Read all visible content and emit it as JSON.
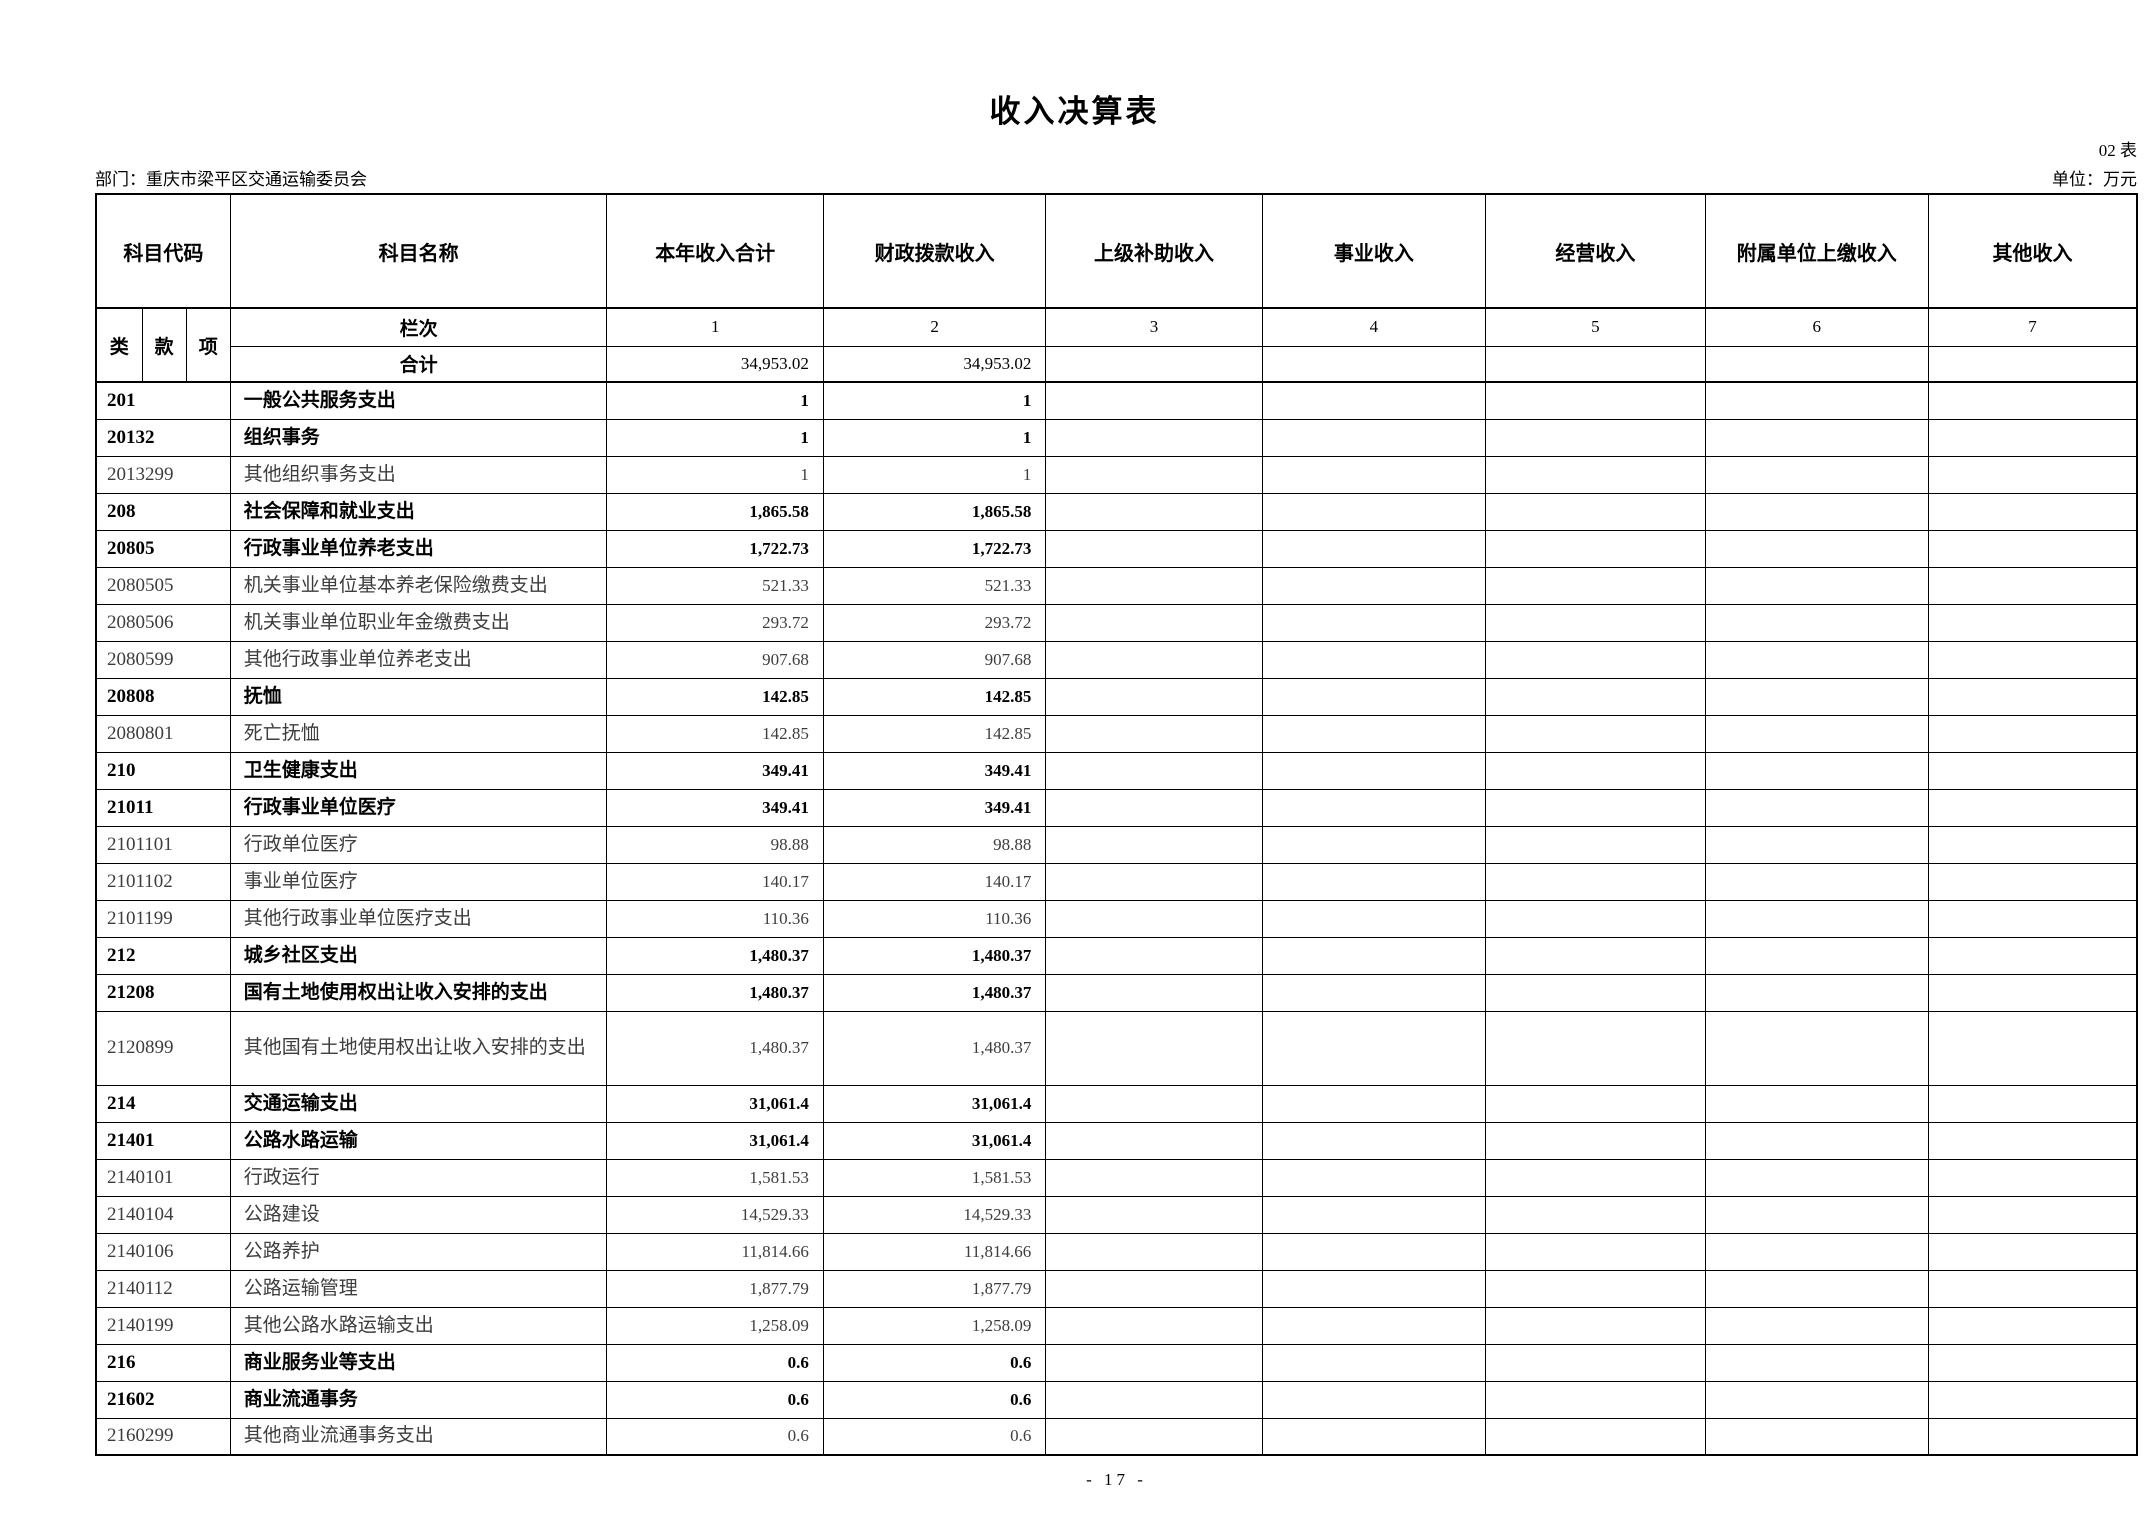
{
  "page": {
    "title": "收入决算表",
    "table_no": "02 表",
    "department": "部门：重庆市梁平区交通运输委员会",
    "unit": "单位：万元",
    "page_number": "- 17 -"
  },
  "table": {
    "headers": {
      "code": "科目代码",
      "name": "科目名称",
      "cols": [
        "本年收入合计",
        "财政拨款收入",
        "上级补助收入",
        "事业收入",
        "经营收入",
        "附属单位上缴收入",
        "其他收入"
      ],
      "code_subs": [
        "类",
        "款",
        "项"
      ],
      "lanci_label": "栏次",
      "col_numbers": [
        "1",
        "2",
        "3",
        "4",
        "5",
        "6",
        "7"
      ],
      "total_label": "合计"
    },
    "total_row": [
      "34,953.02",
      "34,953.02",
      "",
      "",
      "",
      "",
      ""
    ],
    "rows": [
      {
        "code": "201",
        "name": "一般公共服务支出",
        "bold": true,
        "tall": false,
        "values": [
          "1",
          "1",
          "",
          "",
          "",
          "",
          ""
        ]
      },
      {
        "code": "20132",
        "name": "组织事务",
        "bold": true,
        "tall": false,
        "values": [
          "1",
          "1",
          "",
          "",
          "",
          "",
          ""
        ]
      },
      {
        "code": "2013299",
        "name": "其他组织事务支出",
        "bold": false,
        "tall": false,
        "values": [
          "1",
          "1",
          "",
          "",
          "",
          "",
          ""
        ]
      },
      {
        "code": "208",
        "name": "社会保障和就业支出",
        "bold": true,
        "tall": false,
        "values": [
          "1,865.58",
          "1,865.58",
          "",
          "",
          "",
          "",
          ""
        ]
      },
      {
        "code": "20805",
        "name": "行政事业单位养老支出",
        "bold": true,
        "tall": false,
        "values": [
          "1,722.73",
          "1,722.73",
          "",
          "",
          "",
          "",
          ""
        ]
      },
      {
        "code": "2080505",
        "name": "机关事业单位基本养老保险缴费支出",
        "bold": false,
        "tall": false,
        "values": [
          "521.33",
          "521.33",
          "",
          "",
          "",
          "",
          ""
        ]
      },
      {
        "code": "2080506",
        "name": "机关事业单位职业年金缴费支出",
        "bold": false,
        "tall": false,
        "values": [
          "293.72",
          "293.72",
          "",
          "",
          "",
          "",
          ""
        ]
      },
      {
        "code": "2080599",
        "name": "其他行政事业单位养老支出",
        "bold": false,
        "tall": false,
        "values": [
          "907.68",
          "907.68",
          "",
          "",
          "",
          "",
          ""
        ]
      },
      {
        "code": "20808",
        "name": "抚恤",
        "bold": true,
        "tall": false,
        "values": [
          "142.85",
          "142.85",
          "",
          "",
          "",
          "",
          ""
        ]
      },
      {
        "code": "2080801",
        "name": "死亡抚恤",
        "bold": false,
        "tall": false,
        "values": [
          "142.85",
          "142.85",
          "",
          "",
          "",
          "",
          ""
        ]
      },
      {
        "code": "210",
        "name": "卫生健康支出",
        "bold": true,
        "tall": false,
        "values": [
          "349.41",
          "349.41",
          "",
          "",
          "",
          "",
          ""
        ]
      },
      {
        "code": "21011",
        "name": "行政事业单位医疗",
        "bold": true,
        "tall": false,
        "values": [
          "349.41",
          "349.41",
          "",
          "",
          "",
          "",
          ""
        ]
      },
      {
        "code": "2101101",
        "name": "行政单位医疗",
        "bold": false,
        "tall": false,
        "values": [
          "98.88",
          "98.88",
          "",
          "",
          "",
          "",
          ""
        ]
      },
      {
        "code": "2101102",
        "name": "事业单位医疗",
        "bold": false,
        "tall": false,
        "values": [
          "140.17",
          "140.17",
          "",
          "",
          "",
          "",
          ""
        ]
      },
      {
        "code": "2101199",
        "name": "其他行政事业单位医疗支出",
        "bold": false,
        "tall": false,
        "values": [
          "110.36",
          "110.36",
          "",
          "",
          "",
          "",
          ""
        ]
      },
      {
        "code": "212",
        "name": "城乡社区支出",
        "bold": true,
        "tall": false,
        "values": [
          "1,480.37",
          "1,480.37",
          "",
          "",
          "",
          "",
          ""
        ]
      },
      {
        "code": "21208",
        "name": "国有土地使用权出让收入安排的支出",
        "bold": true,
        "tall": false,
        "values": [
          "1,480.37",
          "1,480.37",
          "",
          "",
          "",
          "",
          ""
        ]
      },
      {
        "code": "2120899",
        "name": "其他国有土地使用权出让收入安排的支出",
        "bold": false,
        "tall": true,
        "values": [
          "1,480.37",
          "1,480.37",
          "",
          "",
          "",
          "",
          ""
        ]
      },
      {
        "code": "214",
        "name": "交通运输支出",
        "bold": true,
        "tall": false,
        "values": [
          "31,061.4",
          "31,061.4",
          "",
          "",
          "",
          "",
          ""
        ]
      },
      {
        "code": "21401",
        "name": "公路水路运输",
        "bold": true,
        "tall": false,
        "values": [
          "31,061.4",
          "31,061.4",
          "",
          "",
          "",
          "",
          ""
        ]
      },
      {
        "code": "2140101",
        "name": "行政运行",
        "bold": false,
        "tall": false,
        "values": [
          "1,581.53",
          "1,581.53",
          "",
          "",
          "",
          "",
          ""
        ]
      },
      {
        "code": "2140104",
        "name": "公路建设",
        "bold": false,
        "tall": false,
        "values": [
          "14,529.33",
          "14,529.33",
          "",
          "",
          "",
          "",
          ""
        ]
      },
      {
        "code": "2140106",
        "name": "公路养护",
        "bold": false,
        "tall": false,
        "values": [
          "11,814.66",
          "11,814.66",
          "",
          "",
          "",
          "",
          ""
        ]
      },
      {
        "code": "2140112",
        "name": "公路运输管理",
        "bold": false,
        "tall": false,
        "values": [
          "1,877.79",
          "1,877.79",
          "",
          "",
          "",
          "",
          ""
        ]
      },
      {
        "code": "2140199",
        "name": "其他公路水路运输支出",
        "bold": false,
        "tall": false,
        "values": [
          "1,258.09",
          "1,258.09",
          "",
          "",
          "",
          "",
          ""
        ]
      },
      {
        "code": "216",
        "name": "商业服务业等支出",
        "bold": true,
        "tall": false,
        "values": [
          "0.6",
          "0.6",
          "",
          "",
          "",
          "",
          ""
        ]
      },
      {
        "code": "21602",
        "name": "商业流通事务",
        "bold": true,
        "tall": false,
        "values": [
          "0.6",
          "0.6",
          "",
          "",
          "",
          "",
          ""
        ]
      },
      {
        "code": "2160299",
        "name": "其他商业流通事务支出",
        "bold": false,
        "tall": false,
        "values": [
          "0.6",
          "0.6",
          "",
          "",
          "",
          "",
          ""
        ]
      }
    ]
  }
}
